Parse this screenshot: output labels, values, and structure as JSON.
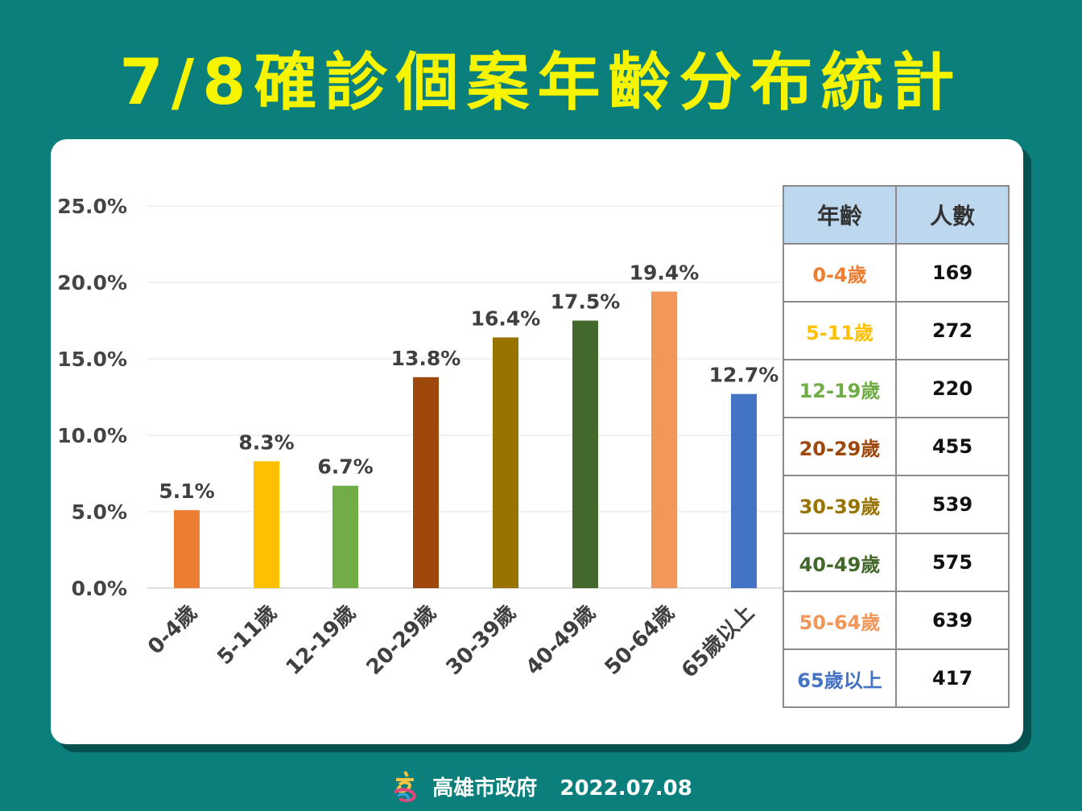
{
  "title": "7/8確診個案年齡分布統計",
  "chart_data": {
    "type": "bar",
    "categories": [
      "0-4歲",
      "5-11歲",
      "12-19歲",
      "20-29歲",
      "30-39歲",
      "40-49歲",
      "50-64歲",
      "65歲以上"
    ],
    "values": [
      5.1,
      8.3,
      6.7,
      13.8,
      16.4,
      17.5,
      19.4,
      12.7
    ],
    "data_labels": [
      "5.1%",
      "8.3%",
      "6.7%",
      "13.8%",
      "16.4%",
      "17.5%",
      "19.4%",
      "12.7%"
    ],
    "colors": [
      "#ed7d31",
      "#ffc000",
      "#70ad47",
      "#9e480e",
      "#997300",
      "#43682b",
      "#f1975a",
      "#4472c4"
    ],
    "yticks": [
      "0.0%",
      "5.0%",
      "10.0%",
      "15.0%",
      "20.0%",
      "25.0%"
    ],
    "ylim": [
      0,
      25
    ],
    "grid": true,
    "xlabel": "",
    "ylabel": ""
  },
  "table": {
    "headers": [
      "年齡",
      "人數"
    ],
    "rows": [
      {
        "age": "0-4歲",
        "count": "169",
        "color": "#ed7d31"
      },
      {
        "age": "5-11歲",
        "count": "272",
        "color": "#ffc000"
      },
      {
        "age": "12-19歲",
        "count": "220",
        "color": "#70ad47"
      },
      {
        "age": "20-29歲",
        "count": "455",
        "color": "#9e480e"
      },
      {
        "age": "30-39歲",
        "count": "539",
        "color": "#997300"
      },
      {
        "age": "40-49歲",
        "count": "575",
        "color": "#43682b"
      },
      {
        "age": "50-64歲",
        "count": "639",
        "color": "#f1975a"
      },
      {
        "age": "65歲以上",
        "count": "417",
        "color": "#4472c4"
      }
    ]
  },
  "footer": {
    "org": "高雄市政府",
    "date": "2022.07.08"
  }
}
